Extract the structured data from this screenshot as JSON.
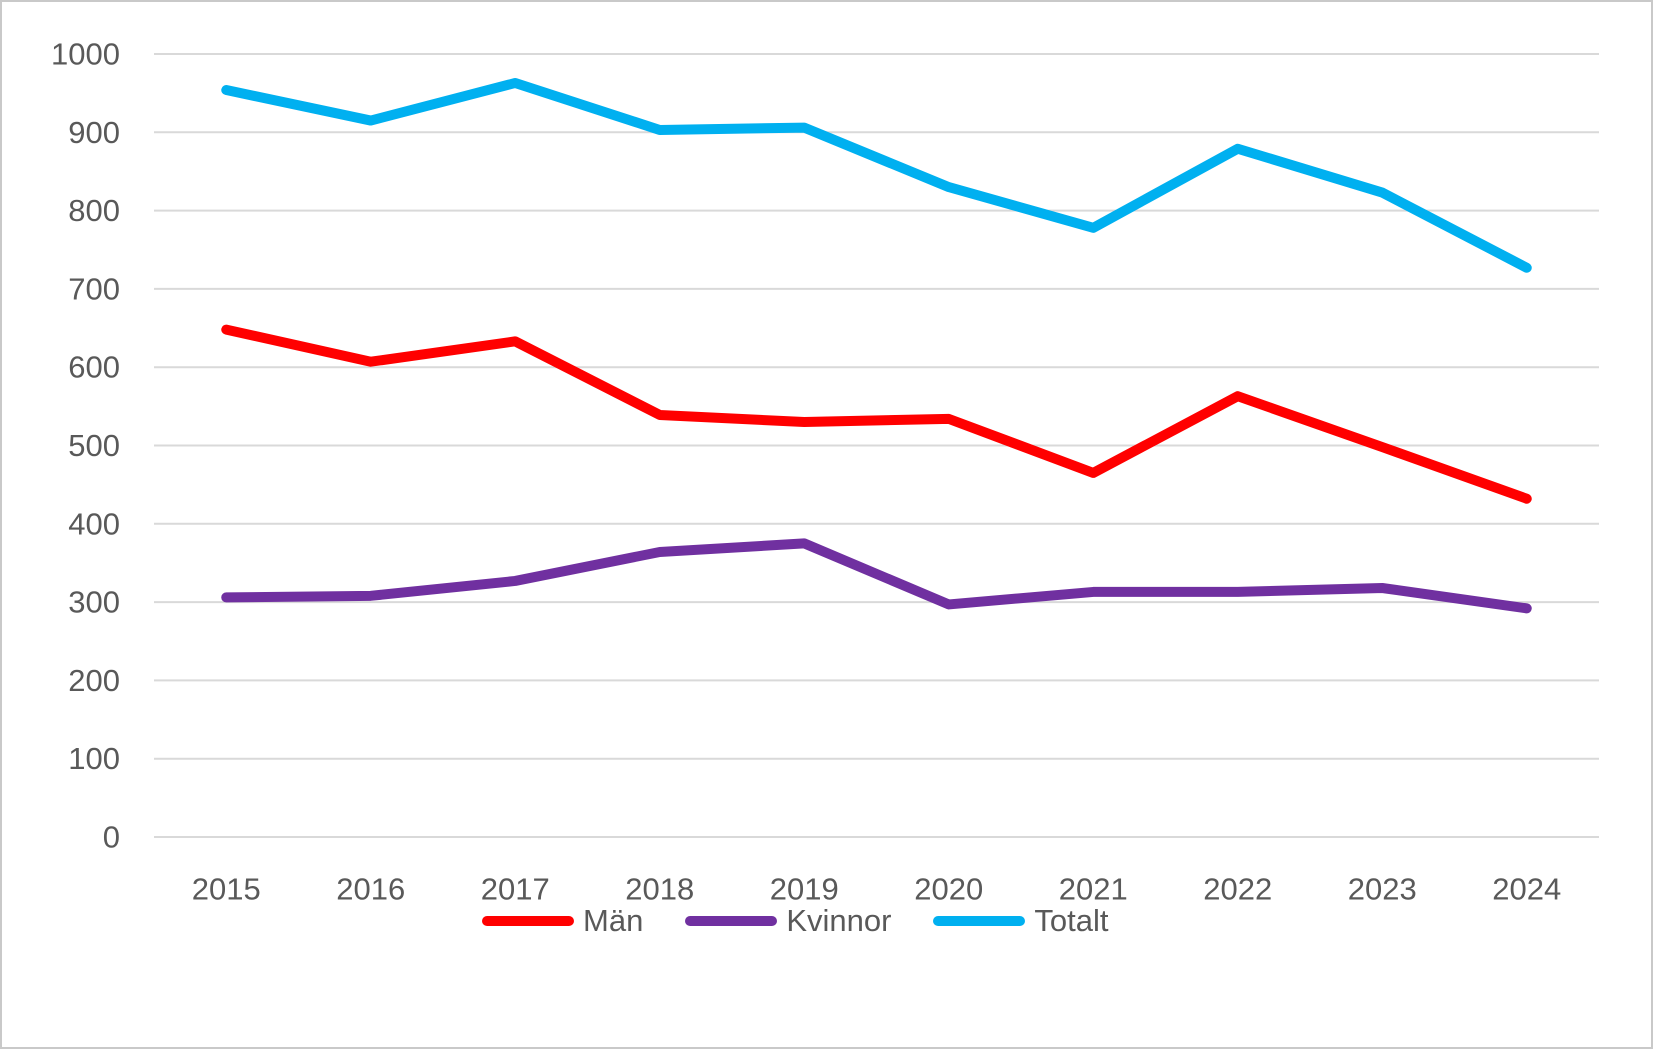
{
  "chart_data": {
    "type": "line",
    "categories": [
      "2015",
      "2016",
      "2017",
      "2018",
      "2019",
      "2020",
      "2021",
      "2022",
      "2023",
      "2024"
    ],
    "series": [
      {
        "name": "Män",
        "color": "#FF0000",
        "values": [
          648,
          607,
          633,
          539,
          530,
          534,
          465,
          563,
          498,
          432
        ]
      },
      {
        "name": "Kvinnor",
        "color": "#7030A0",
        "values": [
          306,
          308,
          327,
          364,
          375,
          297,
          313,
          313,
          318,
          292
        ]
      },
      {
        "name": "Totalt",
        "color": "#00B0F0",
        "values": [
          954,
          915,
          963,
          903,
          906,
          830,
          778,
          879,
          823,
          727
        ]
      }
    ],
    "title": "",
    "xlabel": "",
    "ylabel": "",
    "ylim": [
      0,
      1000
    ],
    "ytick_interval": 100,
    "yticks": [
      "0",
      "100",
      "200",
      "300",
      "400",
      "500",
      "600",
      "700",
      "800",
      "900",
      "1000"
    ],
    "grid": true,
    "legend_position": "bottom",
    "legend_entries": [
      "Män",
      "Kvinnor",
      "Totalt"
    ]
  },
  "style": {
    "gridline_color": "#D9D9D9",
    "axis_label_color": "#595959",
    "frame_border_color": "#C9C9C9",
    "background_color": "#FFFFFF"
  }
}
